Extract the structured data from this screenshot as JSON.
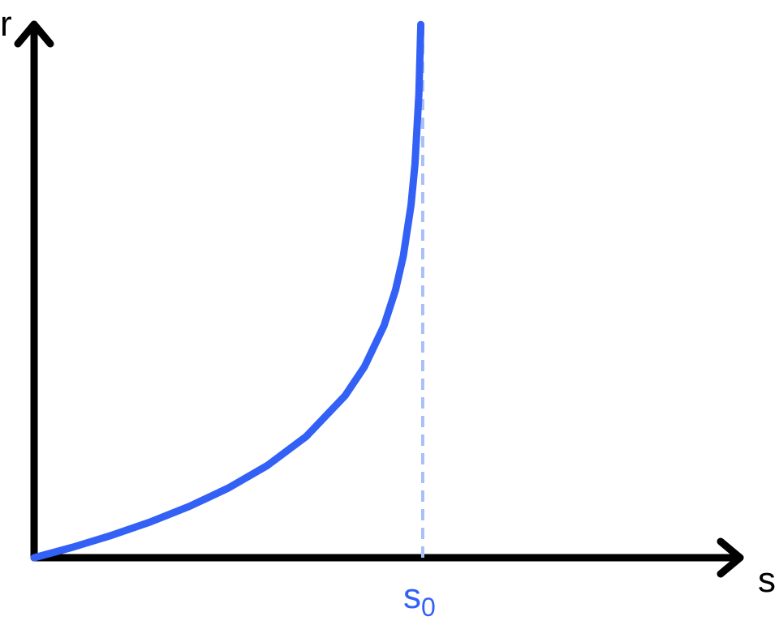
{
  "chart_data": {
    "type": "line",
    "xlabel": "s",
    "ylabel": "r",
    "asymptote": {
      "label": "s",
      "subscript": "0",
      "style": "dashed"
    },
    "series": [
      {
        "x": [
          0,
          0.1,
          0.2,
          0.3,
          0.4,
          0.5,
          0.6,
          0.7,
          0.8,
          0.85,
          0.9,
          0.93,
          0.95,
          0.97,
          0.98,
          0.99,
          0.995
        ],
        "y": [
          0,
          0.105,
          0.223,
          0.357,
          0.511,
          0.693,
          0.916,
          1.204,
          1.609,
          1.897,
          2.303,
          2.659,
          2.996,
          3.507,
          3.912,
          4.605,
          5.298
        ]
      }
    ],
    "xlim": [
      0,
      1.9
    ],
    "ylim": [
      0,
      5.3
    ],
    "grid": false,
    "colors": {
      "axes": "#000000",
      "curve": "#3361f5",
      "asymptote": "#a9bff8",
      "asymptote_label": "#3361f5"
    }
  }
}
